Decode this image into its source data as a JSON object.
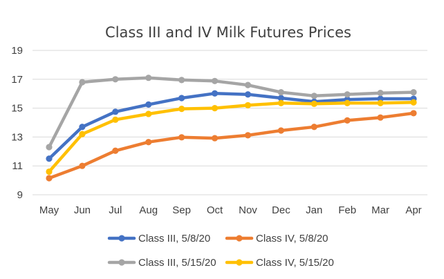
{
  "chart_data": {
    "type": "line",
    "title": "Class III and IV Milk Futures Prices",
    "xlabel": "",
    "ylabel": "",
    "categories": [
      "May",
      "Jun",
      "Jul",
      "Aug",
      "Sep",
      "Oct",
      "Nov",
      "Dec",
      "Jan",
      "Feb",
      "Mar",
      "Apr"
    ],
    "ylim": [
      9,
      19
    ],
    "yticks": [
      9,
      11,
      13,
      15,
      17,
      19
    ],
    "grid": true,
    "legend_position": "bottom",
    "series": [
      {
        "name": "Class III, 5/8/20",
        "color": "#4472C4",
        "values": [
          11.5,
          13.7,
          14.75,
          15.25,
          15.7,
          16.02,
          15.95,
          15.7,
          15.45,
          15.6,
          15.65,
          15.65
        ]
      },
      {
        "name": "Class IV, 5/8/20",
        "color": "#ED7D31",
        "values": [
          10.15,
          11.0,
          12.05,
          12.65,
          12.98,
          12.92,
          13.12,
          13.45,
          13.7,
          14.15,
          14.35,
          14.65
        ]
      },
      {
        "name": "Class III, 5/15/20",
        "color": "#A5A5A5",
        "values": [
          12.3,
          16.8,
          17.0,
          17.1,
          16.95,
          16.88,
          16.6,
          16.1,
          15.85,
          15.95,
          16.05,
          16.1
        ]
      },
      {
        "name": "Class IV, 5/15/20",
        "color": "#FFC000",
        "values": [
          10.6,
          13.2,
          14.2,
          14.6,
          14.95,
          15.0,
          15.2,
          15.35,
          15.3,
          15.35,
          15.35,
          15.4
        ]
      }
    ]
  }
}
